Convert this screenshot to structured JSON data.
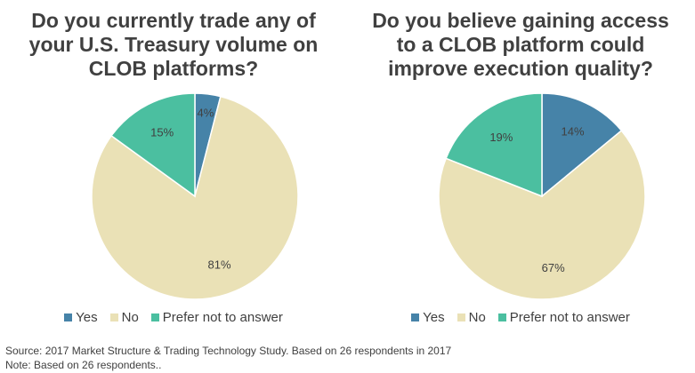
{
  "colors": {
    "yes": "#4683A8",
    "no": "#EAE1B6",
    "prefer_not": "#4BBFA0",
    "text": "#404040"
  },
  "chart_data": [
    {
      "type": "pie",
      "title": "Do you currently trade any of your U.S. Treasury volume on CLOB platforms?",
      "title_lines": [
        "Do you currently trade any of",
        "your U.S. Treasury volume on",
        "CLOB platforms?"
      ],
      "slices": [
        {
          "label": "Yes",
          "value": 4,
          "data_label": "4%",
          "color": "#4683A8"
        },
        {
          "label": "No",
          "value": 81,
          "data_label": "81%",
          "color": "#EAE1B6"
        },
        {
          "label": "Prefer not to answer",
          "value": 15,
          "data_label": "15%",
          "color": "#4BBFA0"
        }
      ],
      "legend": [
        "Yes",
        "No",
        "Prefer not to answer"
      ],
      "legend_position": "bottom"
    },
    {
      "type": "pie",
      "title": "Do you believe gaining access to a CLOB platform could improve execution quality?",
      "title_lines": [
        "Do you believe gaining access",
        "to a CLOB platform could",
        "improve execution quality?"
      ],
      "slices": [
        {
          "label": "Yes",
          "value": 14,
          "data_label": "14%",
          "color": "#4683A8"
        },
        {
          "label": "No",
          "value": 67,
          "data_label": "67%",
          "color": "#EAE1B6"
        },
        {
          "label": "Prefer not to answer",
          "value": 19,
          "data_label": "19%",
          "color": "#4BBFA0"
        }
      ],
      "legend": [
        "Yes",
        "No",
        "Prefer not to answer"
      ],
      "legend_position": "bottom"
    }
  ],
  "notes": {
    "source": "Source: 2017 Market Structure & Trading Technology Study. Based on 26 respondents in 2017",
    "respondents": "Note: Based on 26 respondents.."
  }
}
